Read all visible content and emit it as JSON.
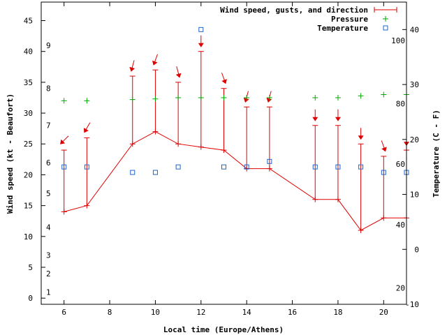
{
  "chart_data": {
    "type": "line",
    "xlabel": "Local time (Europe/Athens)",
    "ylabel_left": "Wind speed (kt - Beaufort)",
    "ylabel_right": "Temperature (C - F)",
    "xlim": [
      5,
      21
    ],
    "ylim_wind": [
      -1,
      48
    ],
    "ylim_temp": [
      -10,
      45
    ],
    "x_ticks": [
      6,
      8,
      10,
      12,
      14,
      16,
      18,
      20
    ],
    "wind_ticks": [
      0,
      5,
      10,
      15,
      20,
      25,
      30,
      35,
      40,
      45
    ],
    "temp_ticks": [
      -10,
      0,
      10,
      20,
      30,
      40
    ],
    "beaufort_labels": [
      {
        "label": "1",
        "wind": 1
      },
      {
        "label": "2",
        "wind": 4
      },
      {
        "label": "3",
        "wind": 7
      },
      {
        "label": "4",
        "wind": 11.5
      },
      {
        "label": "5",
        "wind": 17
      },
      {
        "label": "6",
        "wind": 22
      },
      {
        "label": "7",
        "wind": 28
      },
      {
        "label": "8",
        "wind": 34
      },
      {
        "label": "9",
        "wind": 41
      }
    ],
    "fahrenheit_labels": [
      {
        "label": "20",
        "temp": -7
      },
      {
        "label": "40",
        "temp": 4.5
      },
      {
        "label": "60",
        "temp": 15.5
      },
      {
        "label": "80",
        "temp": 26.5
      },
      {
        "label": "100",
        "temp": 38
      }
    ],
    "legend": {
      "wind": "Wind speed, gusts, and direction",
      "pressure": "Pressure",
      "temperature": "Temperature"
    },
    "colors": {
      "wind": "#e00000",
      "pressure": "#00aa00",
      "temperature": "#1e64c8"
    },
    "wind": [
      {
        "x": 6,
        "speed": 14,
        "gust": 24,
        "dir_deg": 225
      },
      {
        "x": 7,
        "speed": 15,
        "gust": 26,
        "dir_deg": 210
      },
      {
        "x": 9,
        "speed": 25,
        "gust": 36,
        "dir_deg": 195
      },
      {
        "x": 10,
        "speed": 27,
        "gust": 37,
        "dir_deg": 200
      },
      {
        "x": 11,
        "speed": 25,
        "gust": 35,
        "dir_deg": 165
      },
      {
        "x": 12,
        "speed": 24.5,
        "gust": 40,
        "dir_deg": 180
      },
      {
        "x": 13,
        "speed": 24,
        "gust": 34,
        "dir_deg": 160
      },
      {
        "x": 14,
        "speed": 21,
        "gust": 31,
        "dir_deg": 195
      },
      {
        "x": 15,
        "speed": 21,
        "gust": 31,
        "dir_deg": 195
      },
      {
        "x": 17,
        "speed": 16,
        "gust": 28,
        "dir_deg": 180
      },
      {
        "x": 18,
        "speed": 16,
        "gust": 28,
        "dir_deg": 180
      },
      {
        "x": 19,
        "speed": 11,
        "gust": 25,
        "dir_deg": 180
      },
      {
        "x": 20,
        "speed": 13,
        "gust": 23,
        "dir_deg": 160
      },
      {
        "x": 21,
        "speed": 13,
        "gust": 24,
        "dir_deg": 180
      }
    ],
    "pressure_points": [
      {
        "x": 6,
        "y": 32
      },
      {
        "x": 7,
        "y": 32
      },
      {
        "x": 9,
        "y": 32.2
      },
      {
        "x": 10,
        "y": 32.3
      },
      {
        "x": 11,
        "y": 32.5
      },
      {
        "x": 12,
        "y": 32.5
      },
      {
        "x": 13,
        "y": 32.5
      },
      {
        "x": 14,
        "y": 32.5
      },
      {
        "x": 15,
        "y": 32.5
      },
      {
        "x": 17,
        "y": 32.5
      },
      {
        "x": 18,
        "y": 32.5
      },
      {
        "x": 19,
        "y": 32.8
      },
      {
        "x": 20,
        "y": 33
      },
      {
        "x": 21,
        "y": 33
      }
    ],
    "temperature": [
      {
        "x": 6,
        "temp": 15
      },
      {
        "x": 7,
        "temp": 15
      },
      {
        "x": 9,
        "temp": 14
      },
      {
        "x": 10,
        "temp": 14
      },
      {
        "x": 11,
        "temp": 15
      },
      {
        "x": 12,
        "temp": 40
      },
      {
        "x": 13,
        "temp": 15
      },
      {
        "x": 14,
        "temp": 15
      },
      {
        "x": 15,
        "temp": 16
      },
      {
        "x": 17,
        "temp": 15
      },
      {
        "x": 18,
        "temp": 15
      },
      {
        "x": 19,
        "temp": 15
      },
      {
        "x": 20,
        "temp": 14
      },
      {
        "x": 21,
        "temp": 14
      }
    ]
  }
}
